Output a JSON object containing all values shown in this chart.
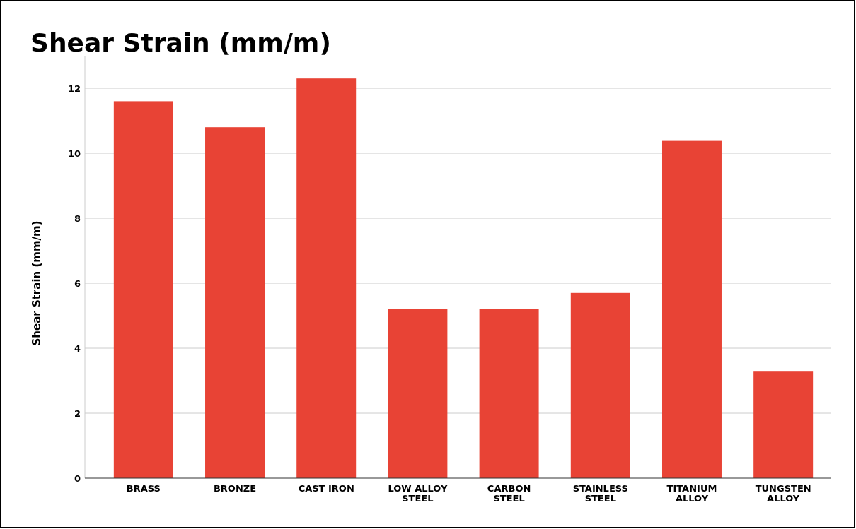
{
  "chart_data": {
    "type": "bar",
    "title": "Shear Strain (mm/m)",
    "ylabel": "Shear Strain (mm/m)",
    "categories": [
      "BRASS",
      "BRONZE",
      "CAST IRON",
      "LOW ALLOY STEEL",
      "CARBON STEEL",
      "STAINLESS STEEL",
      "TITANIUM ALLOY",
      "TUNGSTEN ALLOY"
    ],
    "values": [
      11.6,
      10.8,
      12.3,
      5.2,
      5.2,
      5.7,
      10.4,
      3.3
    ],
    "color": "#e84335",
    "ylim": [
      0,
      13
    ],
    "yticks": [
      0,
      2,
      4,
      6,
      8,
      10,
      12
    ],
    "grid": "y"
  }
}
